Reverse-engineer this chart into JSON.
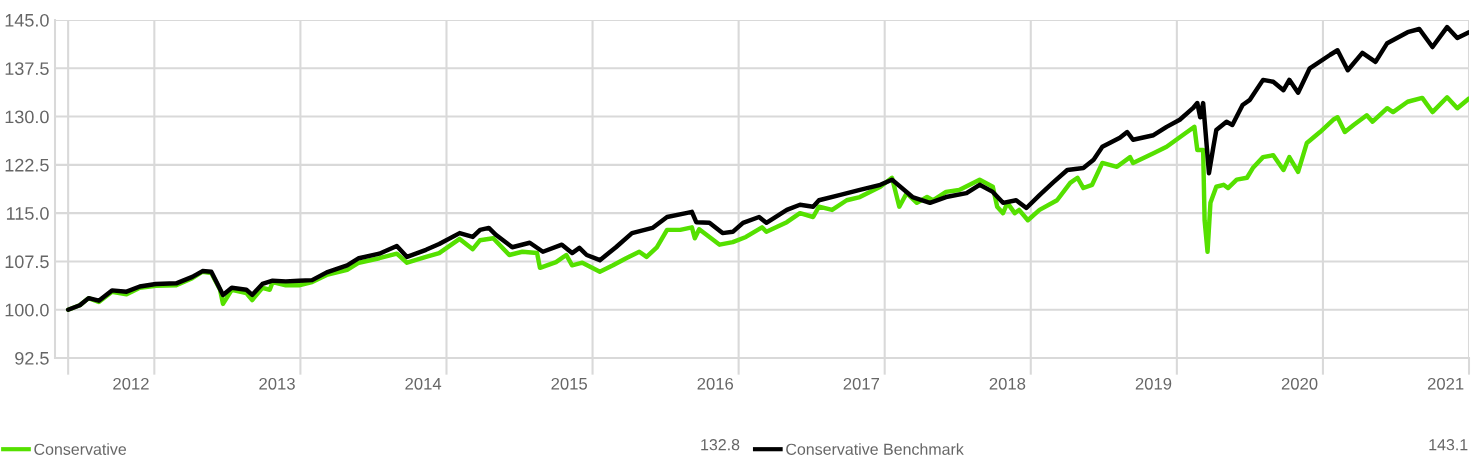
{
  "chart_data": {
    "type": "line",
    "xlim": [
      2011.32,
      2021.0
    ],
    "xticks": [
      {
        "value": 2011.41,
        "label": null
      },
      {
        "value": 2012,
        "label": null
      },
      {
        "value": 2013,
        "label": null
      },
      {
        "value": 2014,
        "label": null
      },
      {
        "value": 2015,
        "label": null
      },
      {
        "value": 2016,
        "label": null
      },
      {
        "value": 2017,
        "label": null
      },
      {
        "value": 2018,
        "label": null
      },
      {
        "value": 2019,
        "label": null
      },
      {
        "value": 2020,
        "label": null
      },
      {
        "value": 2021,
        "label": null
      },
      {
        "value": 2011.84,
        "label": "2012"
      },
      {
        "value": 2012.84,
        "label": "2013"
      },
      {
        "value": 2013.84,
        "label": "2014"
      },
      {
        "value": 2014.84,
        "label": "2015"
      },
      {
        "value": 2015.84,
        "label": "2016"
      },
      {
        "value": 2016.84,
        "label": "2017"
      },
      {
        "value": 2017.84,
        "label": "2018"
      },
      {
        "value": 2018.84,
        "label": "2019"
      },
      {
        "value": 2019.84,
        "label": "2020"
      },
      {
        "value": 2020.84,
        "label": "2021"
      }
    ],
    "ylim": [
      92.5,
      145.0
    ],
    "yticks": [
      92.5,
      {
        "value": 100,
        "label": "100.0"
      },
      107.5,
      {
        "value": 115,
        "label": "115.0"
      },
      122.5,
      {
        "value": 130,
        "label": "130.0"
      },
      137.5,
      {
        "value": 145,
        "label": "145.0"
      }
    ],
    "grid": true,
    "legend": "bottom",
    "line_style": "solid",
    "marker": "none",
    "annotations": [
      "132.8",
      "143.1"
    ],
    "series": [
      {
        "name": "Conservative",
        "color": "#55e000",
        "x": [
          2011.41,
          2011.49,
          2011.55,
          2011.62,
          2011.71,
          2011.81,
          2011.9,
          2012.01,
          2012.15,
          2012.26,
          2012.33,
          2012.39,
          2012.45,
          2012.47,
          2012.53,
          2012.63,
          2012.67,
          2012.74,
          2012.79,
          2012.81,
          2012.9,
          2012.99,
          2013.08,
          2013.18,
          2013.32,
          2013.4,
          2013.54,
          2013.66,
          2013.73,
          2013.86,
          2013.95,
          2014.09,
          2014.18,
          2014.23,
          2014.32,
          2014.43,
          2014.52,
          2014.62,
          2014.64,
          2014.75,
          2014.82,
          2014.86,
          2014.93,
          2015.05,
          2015.14,
          2015.23,
          2015.32,
          2015.37,
          2015.44,
          2015.51,
          2015.6,
          2015.68,
          2015.7,
          2015.73,
          2015.87,
          2015.96,
          2016.05,
          2016.16,
          2016.19,
          2016.33,
          2016.42,
          2016.51,
          2016.55,
          2016.64,
          2016.74,
          2016.83,
          2016.97,
          2017.05,
          2017.1,
          2017.15,
          2017.22,
          2017.29,
          2017.33,
          2017.42,
          2017.51,
          2017.65,
          2017.74,
          2017.77,
          2017.81,
          2017.84,
          2017.89,
          2017.92,
          2017.98,
          2018.06,
          2018.18,
          2018.27,
          2018.32,
          2018.36,
          2018.42,
          2018.49,
          2018.59,
          2018.68,
          2018.7,
          2018.84,
          2018.93,
          2019.02,
          2019.07,
          2019.12,
          2019.14,
          2019.18,
          2019.19,
          2019.21,
          2019.23,
          2019.27,
          2019.32,
          2019.35,
          2019.41,
          2019.48,
          2019.52,
          2019.59,
          2019.66,
          2019.73,
          2019.77,
          2019.83,
          2019.89,
          2019.98,
          2020.07,
          2020.1,
          2020.15,
          2020.21,
          2020.3,
          2020.34,
          2020.44,
          2020.48,
          2020.58,
          2020.68,
          2020.75,
          2020.85,
          2020.92,
          2021.0
        ],
        "values": [
          100.0,
          100.7,
          101.8,
          101.2,
          102.8,
          102.4,
          103.4,
          103.7,
          103.8,
          104.9,
          105.9,
          105.7,
          103.1,
          100.9,
          103.1,
          102.6,
          101.5,
          103.4,
          103.1,
          104.3,
          103.8,
          103.8,
          104.3,
          105.4,
          106.2,
          107.3,
          108.0,
          108.7,
          107.3,
          108.2,
          108.8,
          111.0,
          109.4,
          110.8,
          111.1,
          108.5,
          109.0,
          108.8,
          106.5,
          107.4,
          108.5,
          106.9,
          107.3,
          105.9,
          106.9,
          108.0,
          109.0,
          108.2,
          109.7,
          112.4,
          112.4,
          112.8,
          111.1,
          112.5,
          110.1,
          110.5,
          111.3,
          112.8,
          112.1,
          113.6,
          115.0,
          114.4,
          116.0,
          115.5,
          117.0,
          117.5,
          119.1,
          120.5,
          116.0,
          118.1,
          116.6,
          117.5,
          117.0,
          118.3,
          118.6,
          120.2,
          119.1,
          116.0,
          115.0,
          116.6,
          115.0,
          115.5,
          113.9,
          115.5,
          117.0,
          119.7,
          120.5,
          118.9,
          119.4,
          122.8,
          122.2,
          123.7,
          122.8,
          124.3,
          125.3,
          126.8,
          127.6,
          128.4,
          124.8,
          124.8,
          113.9,
          109.0,
          116.6,
          119.1,
          119.4,
          118.9,
          120.2,
          120.5,
          122.0,
          123.7,
          124.0,
          121.7,
          123.7,
          121.4,
          125.9,
          127.6,
          129.5,
          129.9,
          127.6,
          128.7,
          130.2,
          129.2,
          131.3,
          130.7,
          132.3,
          132.9,
          130.7,
          133.0,
          131.3,
          132.8
        ]
      },
      {
        "name": "Conservative Benchmark",
        "color": "#000000",
        "x": [
          2011.41,
          2011.49,
          2011.55,
          2011.62,
          2011.71,
          2011.81,
          2011.9,
          2012.01,
          2012.15,
          2012.26,
          2012.33,
          2012.39,
          2012.43,
          2012.47,
          2012.53,
          2012.63,
          2012.67,
          2012.74,
          2012.81,
          2012.9,
          2012.99,
          2013.08,
          2013.18,
          2013.32,
          2013.4,
          2013.54,
          2013.66,
          2013.73,
          2013.86,
          2013.95,
          2014.09,
          2014.18,
          2014.23,
          2014.29,
          2014.34,
          2014.45,
          2014.57,
          2014.66,
          2014.79,
          2014.86,
          2014.91,
          2014.96,
          2015.05,
          2015.16,
          2015.27,
          2015.41,
          2015.51,
          2015.64,
          2015.68,
          2015.71,
          2015.8,
          2015.89,
          2015.96,
          2016.03,
          2016.14,
          2016.19,
          2016.33,
          2016.42,
          2016.51,
          2016.55,
          2016.69,
          2016.83,
          2016.97,
          2017.05,
          2017.19,
          2017.31,
          2017.42,
          2017.56,
          2017.65,
          2017.74,
          2017.81,
          2017.9,
          2017.97,
          2018.06,
          2018.15,
          2018.25,
          2018.36,
          2018.43,
          2018.49,
          2018.61,
          2018.66,
          2018.7,
          2018.84,
          2018.93,
          2019.02,
          2019.11,
          2019.14,
          2019.16,
          2019.18,
          2019.22,
          2019.25,
          2019.27,
          2019.34,
          2019.38,
          2019.45,
          2019.5,
          2019.59,
          2019.66,
          2019.73,
          2019.77,
          2019.83,
          2019.91,
          2020.05,
          2020.1,
          2020.17,
          2020.27,
          2020.36,
          2020.44,
          2020.58,
          2020.66,
          2020.75,
          2020.85,
          2020.92,
          2021.0
        ],
        "values": [
          100.0,
          100.7,
          101.8,
          101.4,
          103.0,
          102.8,
          103.6,
          104.0,
          104.1,
          105.1,
          106.0,
          105.9,
          104.1,
          102.3,
          103.4,
          103.1,
          102.3,
          104.0,
          104.5,
          104.4,
          104.5,
          104.6,
          105.8,
          106.9,
          108.0,
          108.7,
          109.9,
          108.2,
          109.3,
          110.2,
          111.9,
          111.3,
          112.4,
          112.7,
          111.6,
          109.7,
          110.4,
          109.0,
          110.1,
          108.8,
          109.6,
          108.5,
          107.7,
          109.7,
          111.9,
          112.7,
          114.4,
          115.0,
          115.2,
          113.6,
          113.5,
          111.9,
          112.1,
          113.5,
          114.4,
          113.5,
          115.5,
          116.3,
          116.0,
          117.0,
          117.8,
          118.6,
          119.4,
          120.2,
          117.5,
          116.6,
          117.5,
          118.1,
          119.4,
          118.3,
          116.6,
          117.0,
          115.8,
          117.8,
          119.7,
          121.7,
          122.0,
          123.3,
          125.3,
          126.7,
          127.6,
          126.4,
          127.1,
          128.4,
          129.5,
          131.3,
          132.1,
          129.9,
          132.1,
          121.2,
          125.3,
          127.9,
          129.2,
          128.7,
          131.8,
          132.6,
          135.7,
          135.4,
          134.1,
          135.7,
          133.7,
          137.5,
          139.6,
          140.3,
          137.2,
          139.9,
          138.5,
          141.4,
          143.1,
          143.6,
          140.8,
          143.9,
          142.2,
          143.1
        ]
      }
    ]
  }
}
